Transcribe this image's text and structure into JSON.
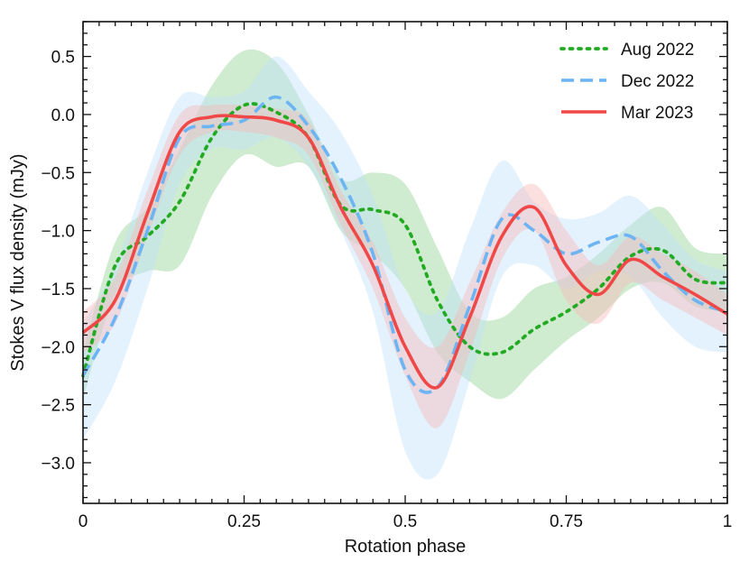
{
  "chart_data": {
    "type": "line",
    "title": "",
    "xlabel": "Rotation phase",
    "ylabel": "Stokes V flux density (mJy)",
    "xlim": [
      0,
      1
    ],
    "ylim": [
      -3.35,
      0.8
    ],
    "x_ticks": [
      {
        "value": 0,
        "label": "0"
      },
      {
        "value": 0.25,
        "label": "0.25"
      },
      {
        "value": 0.5,
        "label": "0.5"
      },
      {
        "value": 0.75,
        "label": "0.75"
      },
      {
        "value": 1,
        "label": "1"
      }
    ],
    "y_ticks": [
      {
        "value": 0.5,
        "label": "0.5"
      },
      {
        "value": 0.0,
        "label": "0.0"
      },
      {
        "value": -0.5,
        "label": "−0.5"
      },
      {
        "value": -1.0,
        "label": "−1.0"
      },
      {
        "value": -1.5,
        "label": "−1.5"
      },
      {
        "value": -2.0,
        "label": "−2.0"
      },
      {
        "value": -2.5,
        "label": "−2.5"
      },
      {
        "value": -3.0,
        "label": "−3.0"
      }
    ],
    "legend_position": "top-right",
    "series": [
      {
        "name": "Aug 2022",
        "key": "aug",
        "color": "#22aa22",
        "band_color": "#8fd18f",
        "style": "dotted",
        "x": [
          0,
          0.05,
          0.1,
          0.15,
          0.2,
          0.25,
          0.3,
          0.35,
          0.4,
          0.45,
          0.5,
          0.55,
          0.6,
          0.65,
          0.7,
          0.75,
          0.8,
          0.85,
          0.9,
          0.95,
          1
        ],
        "y": [
          -2.25,
          -1.3,
          -1.05,
          -0.75,
          -0.2,
          0.08,
          0.02,
          -0.2,
          -0.78,
          -0.82,
          -0.95,
          -1.6,
          -2.0,
          -2.05,
          -1.85,
          -1.7,
          -1.5,
          -1.22,
          -1.17,
          -1.42,
          -1.45
        ],
        "lower": [
          -2.45,
          -1.55,
          -1.35,
          -1.3,
          -0.7,
          -0.35,
          -0.45,
          -0.45,
          -1.0,
          -1.2,
          -1.5,
          -2.05,
          -2.3,
          -2.45,
          -2.2,
          -1.95,
          -1.75,
          -1.5,
          -1.45,
          -1.65,
          -1.7
        ],
        "upper": [
          -2.05,
          -1.1,
          -0.8,
          -0.3,
          0.25,
          0.55,
          0.45,
          0.0,
          -0.55,
          -0.5,
          -0.6,
          -1.15,
          -1.7,
          -1.75,
          -1.5,
          -1.4,
          -1.2,
          -0.95,
          -0.8,
          -1.15,
          -1.2
        ]
      },
      {
        "name": "Dec 2022",
        "key": "dec",
        "color": "#6cb4f4",
        "band_color": "#bfe0fb",
        "style": "dashed",
        "x": [
          0,
          0.05,
          0.1,
          0.15,
          0.2,
          0.25,
          0.3,
          0.35,
          0.4,
          0.45,
          0.5,
          0.55,
          0.6,
          0.65,
          0.7,
          0.75,
          0.8,
          0.85,
          0.9,
          0.95,
          1
        ],
        "y": [
          -2.25,
          -1.75,
          -1.0,
          -0.2,
          -0.1,
          -0.05,
          0.15,
          -0.1,
          -0.55,
          -1.2,
          -2.2,
          -2.35,
          -1.65,
          -0.9,
          -1.0,
          -1.2,
          -1.1,
          -1.05,
          -1.35,
          -1.6,
          -1.7
        ],
        "lower": [
          -2.8,
          -2.3,
          -1.5,
          -0.6,
          -0.3,
          -0.3,
          -0.2,
          -0.45,
          -1.0,
          -1.7,
          -2.9,
          -3.1,
          -2.3,
          -1.4,
          -1.3,
          -1.5,
          -1.35,
          -1.4,
          -1.75,
          -2.0,
          -2.05
        ],
        "upper": [
          -1.8,
          -1.3,
          -0.5,
          0.15,
          0.15,
          0.2,
          0.5,
          0.2,
          -0.15,
          -0.7,
          -1.5,
          -1.7,
          -1.0,
          -0.4,
          -0.75,
          -0.9,
          -0.85,
          -0.7,
          -0.95,
          -1.25,
          -1.35
        ]
      },
      {
        "name": "Mar 2023",
        "key": "mar",
        "color": "#f04747",
        "band_color": "#f9b5b5",
        "style": "solid",
        "x": [
          0,
          0.05,
          0.1,
          0.15,
          0.2,
          0.25,
          0.3,
          0.35,
          0.4,
          0.45,
          0.5,
          0.55,
          0.6,
          0.65,
          0.7,
          0.75,
          0.8,
          0.85,
          0.9,
          0.95,
          1
        ],
        "y": [
          -1.88,
          -1.6,
          -0.85,
          -0.15,
          -0.02,
          -0.02,
          -0.05,
          -0.2,
          -0.8,
          -1.3,
          -2.0,
          -2.35,
          -1.75,
          -1.05,
          -0.8,
          -1.3,
          -1.55,
          -1.25,
          -1.4,
          -1.55,
          -1.72
        ],
        "lower": [
          -2.05,
          -1.8,
          -1.05,
          -0.35,
          -0.15,
          -0.15,
          -0.2,
          -0.35,
          -0.95,
          -1.5,
          -2.25,
          -2.7,
          -2.05,
          -1.25,
          -1.0,
          -1.6,
          -1.8,
          -1.45,
          -1.6,
          -1.75,
          -1.9
        ],
        "upper": [
          -1.7,
          -1.4,
          -0.65,
          0.0,
          0.08,
          0.08,
          0.05,
          -0.05,
          -0.65,
          -1.1,
          -1.75,
          -2.0,
          -1.45,
          -0.85,
          -0.6,
          -1.0,
          -1.3,
          -1.05,
          -1.2,
          -1.35,
          -1.55
        ]
      }
    ]
  }
}
